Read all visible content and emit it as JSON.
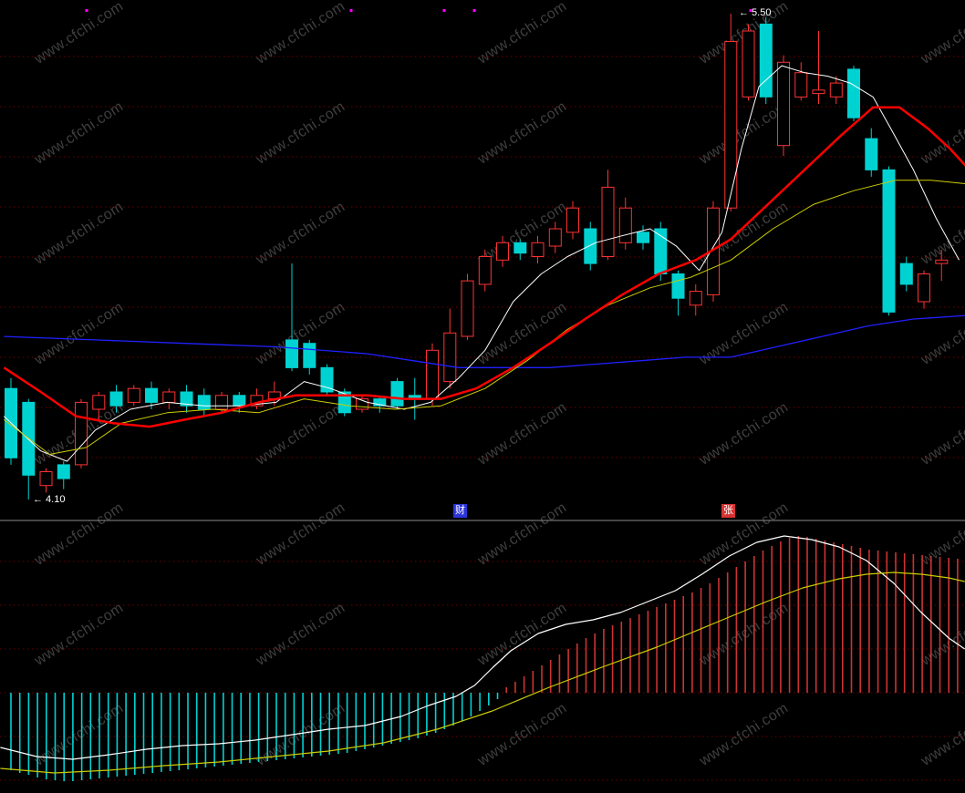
{
  "watermark": {
    "text": "www.cfchi.com"
  },
  "markers": {
    "high_label": "← 5.50",
    "low_label": "← 4.10",
    "tag_left": "财",
    "tag_right": "张"
  },
  "colors": {
    "background": "#000000",
    "up": "#ff3232",
    "down": "#00d2d2",
    "grid": "#6b0000",
    "dot": "#ff00ff",
    "divider": "#8a8a8a",
    "marker_text": "#ffffff"
  },
  "chart_data": [
    {
      "type": "candlestick",
      "panel": "main",
      "axis": {
        "high": 5.5,
        "low": 4.1
      },
      "candles": [
        [
          4.42,
          4.45,
          4.2,
          4.22
        ],
        [
          4.38,
          4.39,
          4.1,
          4.17
        ],
        [
          4.14,
          4.19,
          4.12,
          4.18
        ],
        [
          4.2,
          4.21,
          4.13,
          4.16
        ],
        [
          4.2,
          4.39,
          4.19,
          4.38
        ],
        [
          4.36,
          4.41,
          4.33,
          4.4
        ],
        [
          4.41,
          4.43,
          4.35,
          4.37
        ],
        [
          4.38,
          4.43,
          4.37,
          4.42
        ],
        [
          4.42,
          4.44,
          4.36,
          4.38
        ],
        [
          4.38,
          4.42,
          4.36,
          4.41
        ],
        [
          4.41,
          4.43,
          4.35,
          4.37
        ],
        [
          4.4,
          4.42,
          4.34,
          4.36
        ],
        [
          4.36,
          4.41,
          4.35,
          4.4
        ],
        [
          4.4,
          4.41,
          4.35,
          4.37
        ],
        [
          4.37,
          4.42,
          4.36,
          4.4
        ],
        [
          4.39,
          4.44,
          4.37,
          4.41
        ],
        [
          4.56,
          4.78,
          4.47,
          4.48
        ],
        [
          4.55,
          4.56,
          4.46,
          4.48
        ],
        [
          4.48,
          4.49,
          4.4,
          4.41
        ],
        [
          4.41,
          4.42,
          4.34,
          4.35
        ],
        [
          4.36,
          4.4,
          4.35,
          4.39
        ],
        [
          4.39,
          4.4,
          4.35,
          4.37
        ],
        [
          4.44,
          4.45,
          4.36,
          4.37
        ],
        [
          4.4,
          4.45,
          4.33,
          4.39
        ],
        [
          4.39,
          4.55,
          4.37,
          4.53
        ],
        [
          4.44,
          4.65,
          4.42,
          4.58
        ],
        [
          4.57,
          4.75,
          4.56,
          4.73
        ],
        [
          4.72,
          4.82,
          4.7,
          4.8
        ],
        [
          4.79,
          4.86,
          4.77,
          4.84
        ],
        [
          4.84,
          4.85,
          4.79,
          4.81
        ],
        [
          4.8,
          4.86,
          4.78,
          4.84
        ],
        [
          4.83,
          4.9,
          4.81,
          4.88
        ],
        [
          4.87,
          4.96,
          4.85,
          4.94
        ],
        [
          4.88,
          4.9,
          4.76,
          4.78
        ],
        [
          4.8,
          5.05,
          4.79,
          5.0
        ],
        [
          4.84,
          4.97,
          4.82,
          4.94
        ],
        [
          4.87,
          4.89,
          4.82,
          4.84
        ],
        [
          4.88,
          4.9,
          4.73,
          4.75
        ],
        [
          4.75,
          4.76,
          4.63,
          4.68
        ],
        [
          4.66,
          4.72,
          4.63,
          4.7
        ],
        [
          4.69,
          4.96,
          4.67,
          4.94
        ],
        [
          4.94,
          5.5,
          4.93,
          5.42
        ],
        [
          5.26,
          5.47,
          5.25,
          5.45
        ],
        [
          5.47,
          5.49,
          5.24,
          5.26
        ],
        [
          5.12,
          5.38,
          5.09,
          5.36
        ],
        [
          5.26,
          5.36,
          5.25,
          5.33
        ],
        [
          5.27,
          5.45,
          5.24,
          5.28
        ],
        [
          5.26,
          5.32,
          5.24,
          5.3
        ],
        [
          5.34,
          5.35,
          5.19,
          5.2
        ],
        [
          5.14,
          5.17,
          5.03,
          5.05
        ],
        [
          5.05,
          5.06,
          4.63,
          4.64
        ],
        [
          4.78,
          4.8,
          4.7,
          4.72
        ],
        [
          4.67,
          4.76,
          4.65,
          4.75
        ],
        [
          4.78,
          4.82,
          4.73,
          4.79
        ]
      ],
      "overlays": [
        {
          "name": "ma-long-blue",
          "color": "#2020ff",
          "width": 1.3,
          "points": [
            [
              -0.4,
              4.57
            ],
            [
              4.8,
              4.56
            ],
            [
              9.9,
              4.55
            ],
            [
              15.1,
              4.54
            ],
            [
              20.3,
              4.52
            ],
            [
              22.9,
              4.5
            ],
            [
              25.5,
              4.48
            ],
            [
              28.1,
              4.48
            ],
            [
              30.7,
              4.48
            ],
            [
              33.3,
              4.49
            ],
            [
              35.9,
              4.5
            ],
            [
              38.4,
              4.51
            ],
            [
              41,
              4.51
            ],
            [
              43.6,
              4.54
            ],
            [
              46.2,
              4.57
            ],
            [
              48.8,
              4.6
            ],
            [
              51.4,
              4.62
            ],
            [
              54.4,
              4.63
            ]
          ]
        },
        {
          "name": "ma-short-white",
          "color": "#ffffff",
          "width": 1,
          "points": [
            [
              -0.4,
              4.34
            ],
            [
              1.7,
              4.24
            ],
            [
              3.2,
              4.21
            ],
            [
              4.8,
              4.3
            ],
            [
              6.8,
              4.36
            ],
            [
              8.9,
              4.38
            ],
            [
              11,
              4.37
            ],
            [
              13.1,
              4.37
            ],
            [
              15.1,
              4.38
            ],
            [
              16.7,
              4.44
            ],
            [
              18.2,
              4.42
            ],
            [
              20.3,
              4.38
            ],
            [
              22.4,
              4.36
            ],
            [
              23.9,
              4.38
            ],
            [
              25.5,
              4.45
            ],
            [
              27,
              4.53
            ],
            [
              28.6,
              4.67
            ],
            [
              30.2,
              4.75
            ],
            [
              31.7,
              4.8
            ],
            [
              33.3,
              4.84
            ],
            [
              34.8,
              4.86
            ],
            [
              36.4,
              4.88
            ],
            [
              37.9,
              4.83
            ],
            [
              39.2,
              4.76
            ],
            [
              40.5,
              4.87
            ],
            [
              41.6,
              5.11
            ],
            [
              42.6,
              5.29
            ],
            [
              43.9,
              5.35
            ],
            [
              45.2,
              5.33
            ],
            [
              46.5,
              5.32
            ],
            [
              47.8,
              5.3
            ],
            [
              49.1,
              5.26
            ],
            [
              50.1,
              5.17
            ],
            [
              51.4,
              5.05
            ],
            [
              52.7,
              4.91
            ],
            [
              54,
              4.79
            ]
          ]
        },
        {
          "name": "ma-mid-yellow",
          "color": "#cdcd00",
          "width": 1,
          "points": [
            [
              -0.4,
              4.33
            ],
            [
              2.2,
              4.23
            ],
            [
              4.3,
              4.25
            ],
            [
              6.3,
              4.32
            ],
            [
              8.9,
              4.35
            ],
            [
              11.5,
              4.36
            ],
            [
              14.1,
              4.35
            ],
            [
              16.7,
              4.39
            ],
            [
              19.3,
              4.37
            ],
            [
              21.9,
              4.36
            ],
            [
              24.5,
              4.37
            ],
            [
              27,
              4.42
            ],
            [
              29.4,
              4.5
            ],
            [
              31.7,
              4.59
            ],
            [
              34,
              4.66
            ],
            [
              36.4,
              4.71
            ],
            [
              38.7,
              4.74
            ],
            [
              41,
              4.79
            ],
            [
              43.4,
              4.88
            ],
            [
              45.7,
              4.95
            ],
            [
              48,
              4.99
            ],
            [
              50.4,
              5.02
            ],
            [
              52.4,
              5.02
            ],
            [
              54.4,
              5.01
            ]
          ]
        },
        {
          "name": "ma-trend-red",
          "color": "#ff0000",
          "width": 2.5,
          "points": [
            [
              -0.4,
              4.48
            ],
            [
              1.7,
              4.41
            ],
            [
              3.7,
              4.34
            ],
            [
              5.8,
              4.32
            ],
            [
              7.9,
              4.31
            ],
            [
              9.9,
              4.33
            ],
            [
              12,
              4.35
            ],
            [
              14.1,
              4.38
            ],
            [
              16.2,
              4.4
            ],
            [
              18.2,
              4.4
            ],
            [
              20.3,
              4.4
            ],
            [
              22.4,
              4.39
            ],
            [
              24.5,
              4.39
            ],
            [
              26.5,
              4.42
            ],
            [
              28.6,
              4.48
            ],
            [
              30.7,
              4.55
            ],
            [
              32.7,
              4.62
            ],
            [
              34.8,
              4.69
            ],
            [
              36.9,
              4.75
            ],
            [
              39,
              4.79
            ],
            [
              41,
              4.85
            ],
            [
              43.1,
              4.95
            ],
            [
              45.2,
              5.05
            ],
            [
              47.3,
              5.15
            ],
            [
              49.1,
              5.23
            ],
            [
              50.6,
              5.23
            ],
            [
              52.2,
              5.17
            ],
            [
              53.5,
              5.11
            ],
            [
              54.4,
              5.06
            ]
          ]
        }
      ],
      "signal_dots_x": [
        95,
        385,
        487,
        520,
        823
      ]
    },
    {
      "type": "bar",
      "panel": "indicator",
      "bar_colors": {
        "positive": "#cc3333",
        "negative": "#00d2d2"
      },
      "values": [
        -85,
        -88,
        -90,
        -93,
        -95,
        -96,
        -97,
        -97,
        -96,
        -95,
        -94,
        -93,
        -92,
        -91,
        -90,
        -89,
        -88,
        -87,
        -86,
        -85,
        -84,
        -83,
        -82,
        -81,
        -80,
        -79,
        -78,
        -77,
        -76,
        -75,
        -74,
        -73,
        -72,
        -71,
        -70,
        -69,
        -68,
        -67,
        -66,
        -64,
        -62,
        -60,
        -58,
        -56,
        -54,
        -52,
        -50,
        -47,
        -44,
        -40,
        -36,
        -31,
        -26,
        -20,
        -14,
        -7,
        6,
        12,
        18,
        24,
        30,
        36,
        42,
        48,
        54,
        60,
        65,
        70,
        74,
        78,
        82,
        86,
        90,
        94,
        98,
        102,
        106,
        110,
        115,
        120,
        126,
        132,
        138,
        144,
        150,
        156,
        161,
        166,
        170,
        172,
        171,
        169,
        167,
        165,
        163,
        161,
        159,
        157,
        156,
        155,
        154,
        153,
        152,
        151,
        150,
        149,
        148,
        147
      ],
      "lines": [
        {
          "name": "dif-white",
          "color": "#ffffff",
          "points": [
            [
              -1.2,
              -60
            ],
            [
              2.9,
              -70
            ],
            [
              7,
              -73
            ],
            [
              11.1,
              -68
            ],
            [
              15.3,
              -62
            ],
            [
              19.4,
              -58
            ],
            [
              23.5,
              -56
            ],
            [
              27.6,
              -52
            ],
            [
              31.8,
              -46
            ],
            [
              35.9,
              -40
            ],
            [
              40,
              -36
            ],
            [
              44.1,
              -26
            ],
            [
              47.2,
              -14
            ],
            [
              50.3,
              -4
            ],
            [
              52.4,
              8
            ],
            [
              54.5,
              28
            ],
            [
              56.5,
              46
            ],
            [
              59.6,
              65
            ],
            [
              62.7,
              75
            ],
            [
              65.8,
              80
            ],
            [
              68.9,
              88
            ],
            [
              72,
              100
            ],
            [
              75.1,
              112
            ],
            [
              78.1,
              130
            ],
            [
              81.2,
              150
            ],
            [
              84.3,
              165
            ],
            [
              87.4,
              172
            ],
            [
              90.5,
              168
            ],
            [
              93.6,
              160
            ],
            [
              96.7,
              145
            ],
            [
              99.8,
              120
            ],
            [
              102.9,
              88
            ],
            [
              106,
              60
            ],
            [
              107.8,
              48
            ]
          ]
        },
        {
          "name": "dea-yellow",
          "color": "#cdcd00",
          "points": [
            [
              -1.2,
              -83
            ],
            [
              4.9,
              -88
            ],
            [
              11.1,
              -85
            ],
            [
              17.3,
              -80
            ],
            [
              23.5,
              -76
            ],
            [
              29.7,
              -70
            ],
            [
              35.9,
              -64
            ],
            [
              42.1,
              -55
            ],
            [
              48.2,
              -40
            ],
            [
              54.4,
              -20
            ],
            [
              60.6,
              5
            ],
            [
              66.8,
              28
            ],
            [
              73,
              50
            ],
            [
              79.2,
              75
            ],
            [
              85.4,
              100
            ],
            [
              89.5,
              115
            ],
            [
              93.6,
              125
            ],
            [
              96.7,
              130
            ],
            [
              99.8,
              132
            ],
            [
              102.9,
              130
            ],
            [
              106,
              126
            ],
            [
              107.8,
              122
            ]
          ]
        }
      ]
    }
  ]
}
